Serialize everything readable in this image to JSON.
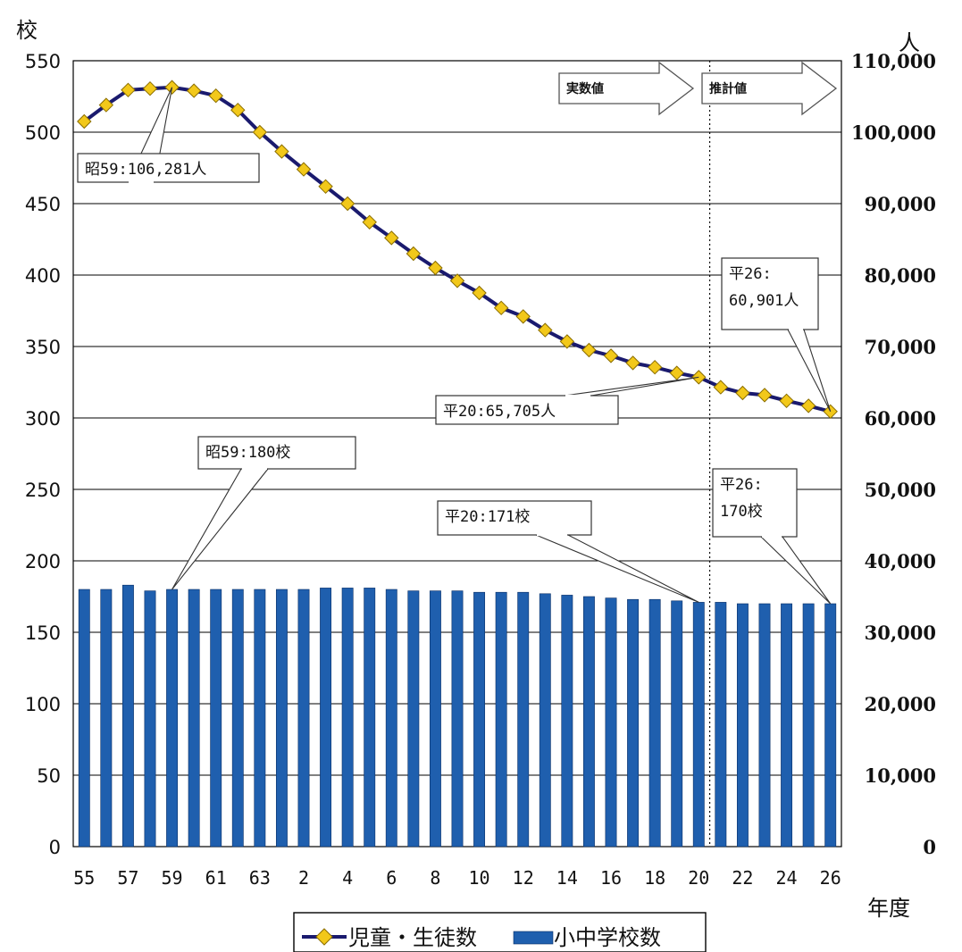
{
  "chart_data": {
    "type": "bar+line",
    "categories": [
      "55",
      "56",
      "57",
      "58",
      "59",
      "60",
      "61",
      "62",
      "63",
      "1",
      "2",
      "3",
      "4",
      "5",
      "6",
      "7",
      "8",
      "9",
      "10",
      "11",
      "12",
      "13",
      "14",
      "15",
      "16",
      "17",
      "18",
      "19",
      "20",
      "21",
      "22",
      "23",
      "24",
      "25",
      "26"
    ],
    "x_tick_labels": [
      "55",
      "57",
      "59",
      "61",
      "63",
      "2",
      "4",
      "6",
      "8",
      "10",
      "12",
      "14",
      "16",
      "18",
      "20",
      "22",
      "24",
      "26"
    ],
    "series": [
      {
        "name": "小中学校数",
        "type": "bar",
        "axis": "left",
        "color": "#1f5fae",
        "values": [
          180,
          180,
          183,
          179,
          180,
          180,
          180,
          180,
          180,
          180,
          180,
          181,
          181,
          181,
          180,
          179,
          179,
          179,
          178,
          178,
          178,
          177,
          176,
          175,
          174,
          173,
          173,
          172,
          171,
          171,
          170,
          170,
          170,
          170,
          170
        ]
      },
      {
        "name": "児童・生徒数",
        "type": "line",
        "axis": "right",
        "line_color": "#1a1a6e",
        "marker_color": "#f2c81a",
        "values": [
          101500,
          103800,
          105900,
          106100,
          106281,
          105800,
          105100,
          103100,
          100000,
          97300,
          94800,
          92400,
          90000,
          87400,
          85200,
          83000,
          81000,
          79200,
          77500,
          75400,
          74200,
          72300,
          70700,
          69500,
          68700,
          67700,
          67100,
          66300,
          65705,
          64300,
          63500,
          63200,
          62400,
          61700,
          60901
        ]
      }
    ],
    "ylabel_left": "校",
    "ylabel_right": "人",
    "xlabel": "年度",
    "ylim_left": [
      0,
      550
    ],
    "ylim_right": [
      0,
      110000
    ],
    "yticks_left": [
      "0",
      "50",
      "100",
      "150",
      "200",
      "250",
      "300",
      "350",
      "400",
      "450",
      "500",
      "550"
    ],
    "yticks_right": [
      "0",
      "10,000",
      "20,000",
      "30,000",
      "40,000",
      "50,000",
      "60,000",
      "70,000",
      "80,000",
      "90,000",
      "100,000",
      "110,000"
    ],
    "grid": "horizontal",
    "legend_position": "bottom",
    "divider_after_category": "20",
    "region_labels": [
      "実数値",
      "推計値"
    ],
    "annotations": [
      {
        "text": "昭59:106,281人",
        "target_index": 4,
        "series": "line"
      },
      {
        "text": "平20:65,705人",
        "target_index": 28,
        "series": "line"
      },
      {
        "text": "平26:\n60,901人",
        "target_index": 34,
        "series": "line"
      },
      {
        "text": "昭59:180校",
        "target_index": 4,
        "series": "bar"
      },
      {
        "text": "平20:171校",
        "target_index": 28,
        "series": "bar"
      },
      {
        "text": "平26:\n170校",
        "target_index": 34,
        "series": "bar"
      }
    ]
  },
  "colors": {
    "bar": "#1f5fae",
    "line": "#1a1a6e",
    "marker": "#f2c81a",
    "marker_edge": "#8a6d00",
    "grid": "#000000"
  }
}
